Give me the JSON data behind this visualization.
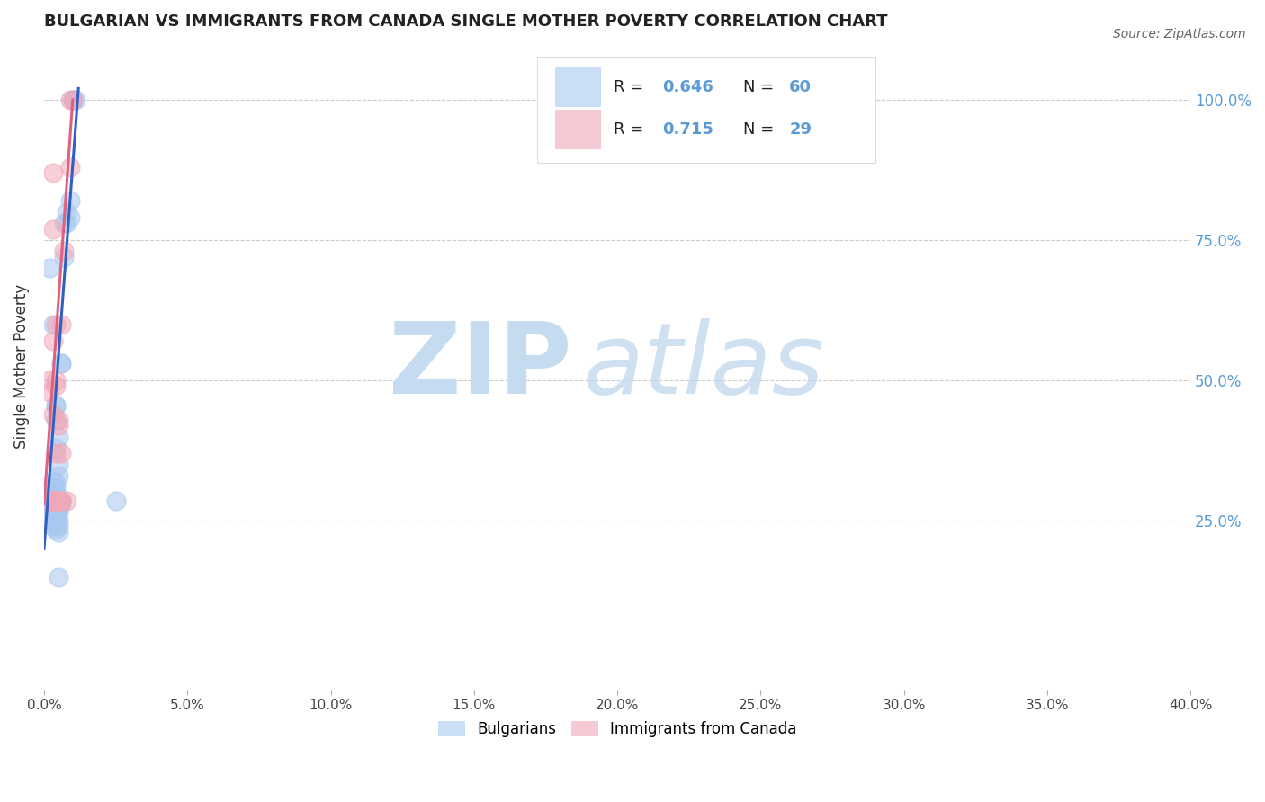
{
  "title": "BULGARIAN VS IMMIGRANTS FROM CANADA SINGLE MOTHER POVERTY CORRELATION CHART",
  "source": "Source: ZipAtlas.com",
  "ylabel": "Single Mother Poverty",
  "xlim": [
    0.0,
    40.0
  ],
  "ylim": [
    -5.0,
    110.0
  ],
  "ytick_labels": [
    "25.0%",
    "50.0%",
    "75.0%",
    "100.0%"
  ],
  "ytick_values": [
    25.0,
    50.0,
    75.0,
    100.0
  ],
  "legend_r_blue": "0.646",
  "legend_n_blue": "60",
  "legend_r_pink": "0.715",
  "legend_n_pink": "29",
  "blue_color": "#A8C8F0",
  "pink_color": "#F0A8B8",
  "blue_line_color": "#3060C0",
  "pink_line_color": "#E06080",
  "blue_points": [
    [
      0.1,
      28.5
    ],
    [
      0.2,
      31.0
    ],
    [
      0.2,
      70.0
    ],
    [
      0.3,
      60.0
    ],
    [
      0.3,
      32.0
    ],
    [
      0.3,
      28.5
    ],
    [
      0.3,
      28.5
    ],
    [
      0.3,
      28.5
    ],
    [
      0.3,
      30.0
    ],
    [
      0.3,
      28.0
    ],
    [
      0.3,
      27.0
    ],
    [
      0.3,
      26.5
    ],
    [
      0.3,
      26.5
    ],
    [
      0.3,
      26.0
    ],
    [
      0.3,
      25.0
    ],
    [
      0.3,
      24.0
    ],
    [
      0.4,
      45.5
    ],
    [
      0.4,
      45.5
    ],
    [
      0.4,
      43.0
    ],
    [
      0.4,
      38.0
    ],
    [
      0.4,
      32.0
    ],
    [
      0.4,
      31.0
    ],
    [
      0.4,
      30.0
    ],
    [
      0.4,
      28.5
    ],
    [
      0.4,
      28.0
    ],
    [
      0.4,
      27.5
    ],
    [
      0.4,
      27.0
    ],
    [
      0.4,
      26.5
    ],
    [
      0.4,
      26.5
    ],
    [
      0.4,
      26.0
    ],
    [
      0.4,
      25.5
    ],
    [
      0.4,
      24.5
    ],
    [
      0.4,
      23.5
    ],
    [
      0.5,
      40.0
    ],
    [
      0.5,
      35.0
    ],
    [
      0.5,
      33.0
    ],
    [
      0.5,
      28.5
    ],
    [
      0.5,
      27.5
    ],
    [
      0.5,
      27.5
    ],
    [
      0.5,
      26.5
    ],
    [
      0.5,
      25.0
    ],
    [
      0.5,
      24.0
    ],
    [
      0.5,
      23.0
    ],
    [
      0.5,
      15.0
    ],
    [
      0.6,
      53.0
    ],
    [
      0.6,
      53.0
    ],
    [
      0.6,
      28.5
    ],
    [
      0.6,
      28.5
    ],
    [
      0.6,
      28.5
    ],
    [
      0.6,
      28.0
    ],
    [
      0.7,
      78.0
    ],
    [
      0.7,
      72.0
    ],
    [
      0.8,
      80.0
    ],
    [
      0.8,
      78.0
    ],
    [
      0.9,
      82.0
    ],
    [
      0.9,
      79.0
    ],
    [
      1.0,
      100.0
    ],
    [
      1.0,
      100.0
    ],
    [
      1.1,
      100.0
    ],
    [
      2.5,
      28.5
    ]
  ],
  "pink_points": [
    [
      0.1,
      28.5
    ],
    [
      0.2,
      50.0
    ],
    [
      0.2,
      48.0
    ],
    [
      0.3,
      28.5
    ],
    [
      0.3,
      28.5
    ],
    [
      0.3,
      28.5
    ],
    [
      0.3,
      28.5
    ],
    [
      0.3,
      44.0
    ],
    [
      0.3,
      57.0
    ],
    [
      0.3,
      77.0
    ],
    [
      0.3,
      87.0
    ],
    [
      0.4,
      28.5
    ],
    [
      0.4,
      28.5
    ],
    [
      0.4,
      37.0
    ],
    [
      0.4,
      49.0
    ],
    [
      0.4,
      50.0
    ],
    [
      0.4,
      60.0
    ],
    [
      0.5,
      28.5
    ],
    [
      0.5,
      28.5
    ],
    [
      0.5,
      42.0
    ],
    [
      0.5,
      43.0
    ],
    [
      0.6,
      28.5
    ],
    [
      0.6,
      37.0
    ],
    [
      0.6,
      60.0
    ],
    [
      0.7,
      73.0
    ],
    [
      0.8,
      28.5
    ],
    [
      0.9,
      100.0
    ],
    [
      1.0,
      100.0
    ],
    [
      0.9,
      88.0
    ]
  ],
  "blue_line": [
    [
      0.0,
      20.0
    ],
    [
      1.2,
      102.0
    ]
  ],
  "pink_line": [
    [
      0.0,
      28.0
    ],
    [
      1.0,
      100.0
    ]
  ]
}
